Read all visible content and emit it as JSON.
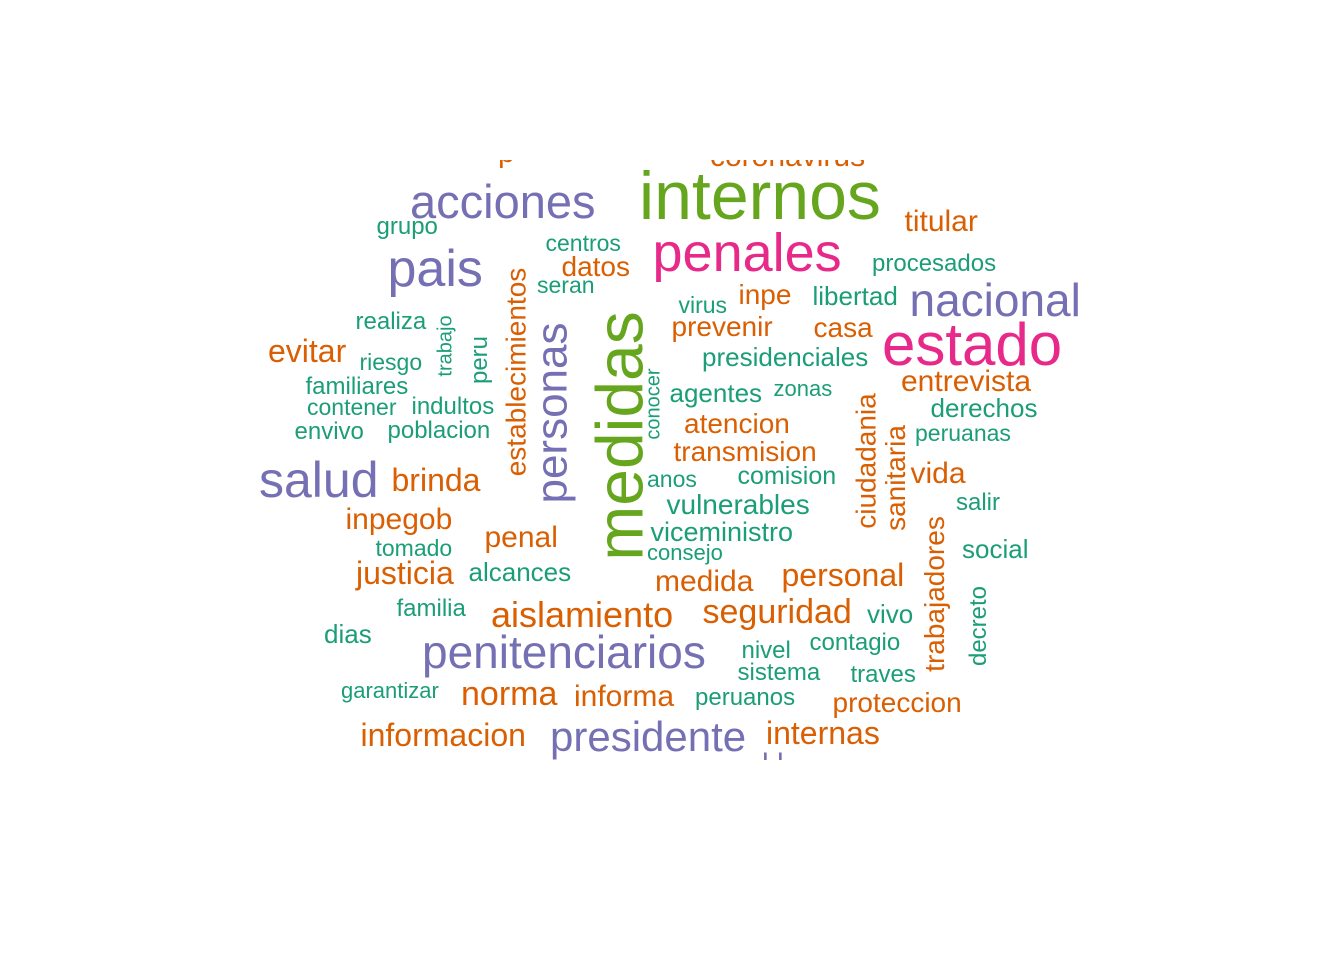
{
  "words": [
    {
      "text": "internos",
      "color": "lgreen"
    },
    {
      "text": "medidas",
      "color": "lgreen"
    },
    {
      "text": "estado",
      "color": "pink"
    },
    {
      "text": "penales",
      "color": "pink"
    },
    {
      "text": "acciones",
      "color": "purple"
    },
    {
      "text": "pais",
      "color": "purple"
    },
    {
      "text": "nacional",
      "color": "purple"
    },
    {
      "text": "salud",
      "color": "purple"
    },
    {
      "text": "personas",
      "color": "purple"
    },
    {
      "text": "penitenciarios",
      "color": "purple"
    },
    {
      "text": "presidente",
      "color": "purple"
    },
    {
      "text": "titular",
      "color": "orange"
    },
    {
      "text": "establecimientos",
      "color": "orange"
    },
    {
      "text": "datos",
      "color": "orange"
    },
    {
      "text": "inpe",
      "color": "orange"
    },
    {
      "text": "prevenir",
      "color": "orange"
    },
    {
      "text": "casa",
      "color": "orange"
    },
    {
      "text": "evitar",
      "color": "orange"
    },
    {
      "text": "entrevista",
      "color": "orange"
    },
    {
      "text": "atencion",
      "color": "orange"
    },
    {
      "text": "transmision",
      "color": "orange"
    },
    {
      "text": "brinda",
      "color": "orange"
    },
    {
      "text": "ciudadania",
      "color": "orange"
    },
    {
      "text": "sanitaria",
      "color": "orange"
    },
    {
      "text": "vida",
      "color": "orange"
    },
    {
      "text": "inpegob",
      "color": "orange"
    },
    {
      "text": "penal",
      "color": "orange"
    },
    {
      "text": "justicia",
      "color": "orange"
    },
    {
      "text": "medida",
      "color": "orange"
    },
    {
      "text": "personal",
      "color": "orange"
    },
    {
      "text": "aislamiento",
      "color": "orange"
    },
    {
      "text": "seguridad",
      "color": "orange"
    },
    {
      "text": "trabajadores",
      "color": "orange"
    },
    {
      "text": "norma",
      "color": "orange"
    },
    {
      "text": "informa",
      "color": "orange"
    },
    {
      "text": "proteccion",
      "color": "orange"
    },
    {
      "text": "informacion",
      "color": "orange"
    },
    {
      "text": "internas",
      "color": "orange"
    },
    {
      "text": "grupo",
      "color": "dgreen"
    },
    {
      "text": "centros",
      "color": "dgreen"
    },
    {
      "text": "procesados",
      "color": "dgreen"
    },
    {
      "text": "seran",
      "color": "dgreen"
    },
    {
      "text": "libertad",
      "color": "dgreen"
    },
    {
      "text": "virus",
      "color": "dgreen"
    },
    {
      "text": "realiza",
      "color": "dgreen"
    },
    {
      "text": "trabajo",
      "color": "dgreen"
    },
    {
      "text": "peru",
      "color": "dgreen"
    },
    {
      "text": "riesgo",
      "color": "dgreen"
    },
    {
      "text": "presidenciales",
      "color": "dgreen"
    },
    {
      "text": "familiares",
      "color": "dgreen"
    },
    {
      "text": "conocer",
      "color": "dgreen"
    },
    {
      "text": "agentes",
      "color": "dgreen"
    },
    {
      "text": "zonas",
      "color": "dgreen"
    },
    {
      "text": "contener",
      "color": "dgreen"
    },
    {
      "text": "indultos",
      "color": "dgreen"
    },
    {
      "text": "derechos",
      "color": "dgreen"
    },
    {
      "text": "envivo",
      "color": "dgreen"
    },
    {
      "text": "poblacion",
      "color": "dgreen"
    },
    {
      "text": "peruanas",
      "color": "dgreen"
    },
    {
      "text": "anos",
      "color": "dgreen"
    },
    {
      "text": "comision",
      "color": "dgreen"
    },
    {
      "text": "vulnerables",
      "color": "dgreen"
    },
    {
      "text": "salir",
      "color": "dgreen"
    },
    {
      "text": "viceministro",
      "color": "dgreen"
    },
    {
      "text": "tomado",
      "color": "dgreen"
    },
    {
      "text": "consejo",
      "color": "dgreen"
    },
    {
      "text": "social",
      "color": "dgreen"
    },
    {
      "text": "alcances",
      "color": "dgreen"
    },
    {
      "text": "familia",
      "color": "dgreen"
    },
    {
      "text": "vivo",
      "color": "dgreen"
    },
    {
      "text": "decreto",
      "color": "dgreen"
    },
    {
      "text": "dias",
      "color": "dgreen"
    },
    {
      "text": "nivel",
      "color": "dgreen"
    },
    {
      "text": "contagio",
      "color": "dgreen"
    },
    {
      "text": "sistema",
      "color": "dgreen"
    },
    {
      "text": "traves",
      "color": "dgreen"
    },
    {
      "text": "garantizar",
      "color": "dgreen"
    },
    {
      "text": "peruanos",
      "color": "dgreen"
    }
  ]
}
